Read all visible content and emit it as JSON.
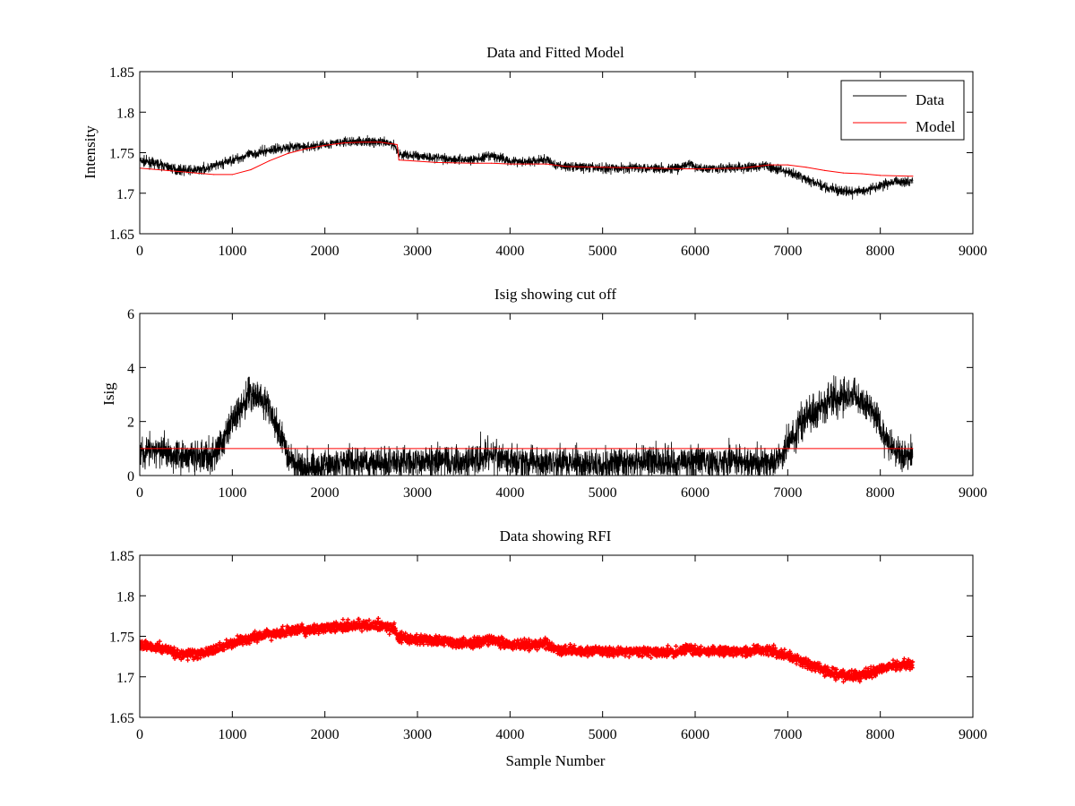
{
  "chart_data": [
    {
      "type": "line",
      "title": "Data and Fitted Model",
      "xlabel": "",
      "ylabel": "Intensity",
      "xlim": [
        0,
        9000
      ],
      "ylim": [
        1.65,
        1.85
      ],
      "xticks": [
        0,
        1000,
        2000,
        3000,
        4000,
        5000,
        6000,
        7000,
        8000,
        9000
      ],
      "yticks": [
        1.65,
        1.7,
        1.75,
        1.8,
        1.85
      ],
      "x_tick_labels": [
        "0",
        "1000",
        "2000",
        "3000",
        "4000",
        "5000",
        "6000",
        "7000",
        "8000",
        "9000"
      ],
      "y_tick_labels": [
        "1.65",
        "1.7",
        "1.75",
        "1.8",
        "1.85"
      ],
      "legend": {
        "position": "top-right",
        "entries": [
          "Data",
          "Model"
        ]
      },
      "series": [
        {
          "name": "Data",
          "color": "#000000",
          "style": "noisy-line",
          "noise": 0.006,
          "x": [
            0,
            200,
            400,
            600,
            800,
            1000,
            1200,
            1400,
            1600,
            1800,
            2000,
            2200,
            2400,
            2600,
            2750,
            2800,
            3000,
            3200,
            3400,
            3600,
            3800,
            4000,
            4200,
            4400,
            4500,
            4800,
            5000,
            5200,
            5400,
            5600,
            5800,
            5950,
            6000,
            6200,
            6400,
            6600,
            6750,
            6900,
            7100,
            7300,
            7500,
            7700,
            7900,
            8100,
            8350
          ],
          "y": [
            1.74,
            1.736,
            1.729,
            1.728,
            1.733,
            1.741,
            1.748,
            1.753,
            1.757,
            1.757,
            1.76,
            1.763,
            1.764,
            1.763,
            1.76,
            1.748,
            1.746,
            1.744,
            1.742,
            1.741,
            1.746,
            1.74,
            1.739,
            1.741,
            1.734,
            1.732,
            1.731,
            1.731,
            1.732,
            1.731,
            1.73,
            1.737,
            1.731,
            1.731,
            1.731,
            1.732,
            1.734,
            1.73,
            1.722,
            1.712,
            1.704,
            1.701,
            1.705,
            1.713,
            1.716
          ]
        },
        {
          "name": "Model",
          "color": "#ff0000",
          "style": "line",
          "x": [
            0,
            300,
            600,
            800,
            1000,
            1200,
            1400,
            1600,
            1800,
            2000,
            2200,
            2400,
            2600,
            2780,
            2800,
            3200,
            3600,
            3800,
            4000,
            4400,
            4600,
            5000,
            5500,
            6000,
            6500,
            6800,
            7000,
            7200,
            7400,
            7600,
            7800,
            8000,
            8350
          ],
          "y": [
            1.731,
            1.728,
            1.725,
            1.723,
            1.723,
            1.729,
            1.74,
            1.749,
            1.755,
            1.759,
            1.762,
            1.763,
            1.763,
            1.76,
            1.741,
            1.738,
            1.737,
            1.737,
            1.736,
            1.736,
            1.733,
            1.732,
            1.731,
            1.73,
            1.731,
            1.735,
            1.735,
            1.732,
            1.728,
            1.725,
            1.724,
            1.722,
            1.721
          ]
        }
      ]
    },
    {
      "type": "line",
      "title": "Isig showing cut off",
      "xlabel": "",
      "ylabel": "Isig",
      "xlim": [
        0,
        9000
      ],
      "ylim": [
        0,
        6
      ],
      "xticks": [
        0,
        1000,
        2000,
        3000,
        4000,
        5000,
        6000,
        7000,
        8000,
        9000
      ],
      "yticks": [
        0,
        2,
        4,
        6
      ],
      "x_tick_labels": [
        "0",
        "1000",
        "2000",
        "3000",
        "4000",
        "5000",
        "6000",
        "7000",
        "8000",
        "9000"
      ],
      "y_tick_labels": [
        "0",
        "2",
        "4",
        "6"
      ],
      "series": [
        {
          "name": "Isig",
          "color": "#000000",
          "style": "noisy-line",
          "noise": 0.6,
          "floor": 0,
          "x": [
            0,
            200,
            400,
            600,
            800,
            900,
            1000,
            1100,
            1200,
            1300,
            1400,
            1500,
            1600,
            1700,
            1800,
            2000,
            2500,
            3000,
            3500,
            3800,
            4000,
            4500,
            5000,
            5500,
            6000,
            6500,
            6800,
            6900,
            7000,
            7200,
            7400,
            7600,
            7700,
            7800,
            7900,
            8000,
            8100,
            8200,
            8350
          ],
          "y": [
            0.9,
            0.9,
            0.8,
            0.7,
            0.7,
            1.3,
            2.0,
            2.6,
            3.0,
            2.9,
            2.5,
            1.6,
            0.8,
            0.4,
            0.3,
            0.4,
            0.5,
            0.5,
            0.5,
            0.8,
            0.5,
            0.5,
            0.4,
            0.5,
            0.5,
            0.5,
            0.4,
            0.5,
            1.2,
            2.2,
            2.7,
            3.0,
            3.0,
            2.8,
            2.4,
            1.8,
            1.2,
            0.8,
            0.7
          ]
        },
        {
          "name": "Cut off",
          "color": "#ff0000",
          "style": "line",
          "x": [
            0,
            8350
          ],
          "y": [
            1,
            1
          ]
        }
      ]
    },
    {
      "type": "scatter",
      "title": "Data showing RFI",
      "xlabel": "Sample Number",
      "ylabel": "",
      "xlim": [
        0,
        9000
      ],
      "ylim": [
        1.65,
        1.85
      ],
      "xticks": [
        0,
        1000,
        2000,
        3000,
        4000,
        5000,
        6000,
        7000,
        8000,
        9000
      ],
      "yticks": [
        1.65,
        1.7,
        1.75,
        1.8,
        1.85
      ],
      "x_tick_labels": [
        "0",
        "1000",
        "2000",
        "3000",
        "4000",
        "5000",
        "6000",
        "7000",
        "8000",
        "9000"
      ],
      "y_tick_labels": [
        "1.65",
        "1.7",
        "1.75",
        "1.8",
        "1.85"
      ],
      "series": [
        {
          "name": "RFI",
          "color": "#ff0000",
          "style": "markers",
          "noise": 0.006,
          "x": [
            0,
            200,
            400,
            600,
            800,
            1000,
            1200,
            1400,
            1600,
            1800,
            2000,
            2200,
            2400,
            2600,
            2750,
            2800,
            3000,
            3200,
            3400,
            3600,
            3800,
            4000,
            4200,
            4400,
            4500,
            4800,
            5000,
            5200,
            5400,
            5600,
            5800,
            5950,
            6000,
            6200,
            6400,
            6600,
            6750,
            6900,
            7100,
            7300,
            7500,
            7700,
            7900,
            8100,
            8350
          ],
          "y": [
            1.74,
            1.736,
            1.729,
            1.728,
            1.733,
            1.741,
            1.748,
            1.753,
            1.757,
            1.757,
            1.76,
            1.763,
            1.764,
            1.763,
            1.76,
            1.748,
            1.746,
            1.744,
            1.742,
            1.741,
            1.746,
            1.74,
            1.739,
            1.741,
            1.734,
            1.732,
            1.731,
            1.731,
            1.732,
            1.731,
            1.73,
            1.737,
            1.731,
            1.731,
            1.731,
            1.732,
            1.734,
            1.73,
            1.722,
            1.712,
            1.704,
            1.701,
            1.705,
            1.713,
            1.716
          ]
        }
      ]
    }
  ]
}
